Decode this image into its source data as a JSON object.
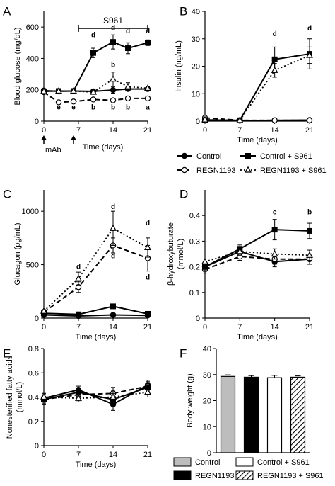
{
  "chart_data": [
    {
      "panel": "A",
      "type": "line",
      "ylabel": "Blood glucose (mg/dL)",
      "xlabel": "Time (days)",
      "ylim": [
        0,
        700
      ],
      "yticks": [
        0,
        200,
        400,
        600
      ],
      "xlim": [
        0,
        21
      ],
      "xticks": [
        0,
        7,
        14,
        21
      ],
      "bracket": {
        "label": "S961",
        "from": 7,
        "to": 21
      },
      "arrows": [
        {
          "x": 0,
          "label": "mAb"
        },
        {
          "x": 6,
          "label": ""
        }
      ],
      "series": [
        {
          "name": "Control",
          "x": [
            0,
            3,
            6,
            10,
            14,
            17,
            21
          ],
          "y": [
            195,
            190,
            192,
            190,
            198,
            205,
            205
          ],
          "err": [
            8,
            6,
            6,
            8,
            20,
            12,
            6
          ],
          "style": "control"
        },
        {
          "name": "REGN1193",
          "x": [
            0,
            3,
            6,
            10,
            14,
            17,
            21
          ],
          "y": [
            185,
            120,
            125,
            138,
            133,
            145,
            145
          ],
          "err": [
            8,
            8,
            8,
            8,
            8,
            10,
            8
          ],
          "style": "regn"
        },
        {
          "name": "Control + S961",
          "x": [
            0,
            3,
            6,
            10,
            14,
            17,
            21
          ],
          "y": [
            190,
            192,
            192,
            435,
            505,
            465,
            500
          ],
          "err": [
            8,
            8,
            8,
            30,
            45,
            35,
            18
          ],
          "style": "control_s961"
        },
        {
          "name": "REGN1193 + S961",
          "x": [
            0,
            3,
            6,
            10,
            14,
            17,
            21
          ],
          "y": [
            190,
            192,
            192,
            185,
            268,
            220,
            210
          ],
          "err": [
            8,
            8,
            8,
            10,
            45,
            25,
            10
          ],
          "style": "regn_s961"
        }
      ],
      "annotations": [
        {
          "x": 10,
          "y": 535,
          "text": "d"
        },
        {
          "x": 14,
          "y": 580,
          "text": "d"
        },
        {
          "x": 17,
          "y": 560,
          "text": "d"
        },
        {
          "x": 21,
          "y": 560,
          "text": "d"
        },
        {
          "x": 14,
          "y": 345,
          "text": "b"
        },
        {
          "x": 3,
          "y": 75,
          "text": "e"
        },
        {
          "x": 6,
          "y": 75,
          "text": "e"
        },
        {
          "x": 10,
          "y": 75,
          "text": "b"
        },
        {
          "x": 14,
          "y": 75,
          "text": "b"
        },
        {
          "x": 17,
          "y": 75,
          "text": "b"
        },
        {
          "x": 21,
          "y": 75,
          "text": "a"
        }
      ]
    },
    {
      "panel": "B",
      "type": "line",
      "ylabel": "Insulin (ng/mL)",
      "xlabel": "Time (days)",
      "ylim": [
        0,
        40
      ],
      "yticks": [
        0,
        10,
        20,
        30,
        40
      ],
      "xlim": [
        0,
        21
      ],
      "xticks": [
        0,
        7,
        14,
        21
      ],
      "series": [
        {
          "name": "Control",
          "x": [
            0,
            7,
            14,
            21
          ],
          "y": [
            0.5,
            0.2,
            0.3,
            0.4
          ],
          "err": [
            0.3,
            0.2,
            0.2,
            0.2
          ],
          "style": "control"
        },
        {
          "name": "REGN1193",
          "x": [
            0,
            7,
            14,
            21
          ],
          "y": [
            1.2,
            0.3,
            0.3,
            0.3
          ],
          "err": [
            0.4,
            0.2,
            0.2,
            0.2
          ],
          "style": "regn"
        },
        {
          "name": "Control + S961",
          "x": [
            0,
            7,
            14,
            21
          ],
          "y": [
            0.4,
            0.3,
            22.5,
            24.5
          ],
          "err": [
            0.2,
            0.2,
            4.5,
            5.5
          ],
          "style": "control_s961"
        },
        {
          "name": "REGN1193 + S961",
          "x": [
            0,
            7,
            14,
            21
          ],
          "y": [
            0.5,
            0.3,
            18.5,
            24.0
          ],
          "err": [
            0.2,
            0.2,
            2.5,
            3.0
          ],
          "style": "regn_s961"
        }
      ],
      "annotations": [
        {
          "x": 14,
          "y": 31,
          "text": "d"
        },
        {
          "x": 21,
          "y": 33,
          "text": "d"
        }
      ]
    },
    {
      "panel": "C",
      "type": "line",
      "ylabel": "Glucagon (pg/mL)",
      "xlabel": "Time (days)",
      "ylim": [
        0,
        1200
      ],
      "yticks": [
        0,
        500,
        1000
      ],
      "xlim": [
        0,
        21
      ],
      "xticks": [
        0,
        7,
        14,
        21
      ],
      "series": [
        {
          "name": "Control",
          "x": [
            0,
            7,
            14,
            21
          ],
          "y": [
            30,
            20,
            30,
            25
          ],
          "err": [
            8,
            8,
            8,
            8
          ],
          "style": "control"
        },
        {
          "name": "REGN1193",
          "x": [
            0,
            7,
            14,
            21
          ],
          "y": [
            55,
            290,
            680,
            560
          ],
          "err": [
            15,
            50,
            70,
            120
          ],
          "style": "regn"
        },
        {
          "name": "Control + S961",
          "x": [
            0,
            7,
            14,
            21
          ],
          "y": [
            45,
            35,
            110,
            40
          ],
          "err": [
            10,
            8,
            15,
            10
          ],
          "style": "control_s961"
        },
        {
          "name": "REGN1193 + S961",
          "x": [
            0,
            7,
            14,
            21
          ],
          "y": [
            65,
            370,
            840,
            660
          ],
          "err": [
            15,
            60,
            160,
            90
          ],
          "style": "regn_s961"
        }
      ],
      "annotations": [
        {
          "x": 7,
          "y": 460,
          "text": "d"
        },
        {
          "x": 14,
          "y": 1020,
          "text": "d"
        },
        {
          "x": 14,
          "y": 560,
          "text": "d"
        },
        {
          "x": 21,
          "y": 870,
          "text": "d"
        },
        {
          "x": 21,
          "y": 360,
          "text": "d"
        }
      ]
    },
    {
      "panel": "D",
      "type": "line",
      "ylabel": "β-hydroxybuturate (mmol/L)",
      "xlabel": "Time (days)",
      "ylim": [
        0,
        0.5
      ],
      "yticks": [
        0,
        0.1,
        0.2,
        0.3,
        0.4
      ],
      "xlim": [
        0,
        21
      ],
      "xticks": [
        0,
        7,
        14,
        21
      ],
      "series": [
        {
          "name": "Control",
          "x": [
            0,
            7,
            14,
            21
          ],
          "y": [
            0.2,
            0.26,
            0.22,
            0.23
          ],
          "err": [
            0.015,
            0.015,
            0.02,
            0.02
          ],
          "style": "control"
        },
        {
          "name": "REGN1193",
          "x": [
            0,
            7,
            14,
            21
          ],
          "y": [
            0.19,
            0.24,
            0.23,
            0.23
          ],
          "err": [
            0.015,
            0.015,
            0.02,
            0.02
          ],
          "style": "regn"
        },
        {
          "name": "Control + S961",
          "x": [
            0,
            7,
            14,
            21
          ],
          "y": [
            0.2,
            0.27,
            0.345,
            0.34
          ],
          "err": [
            0.015,
            0.015,
            0.04,
            0.03
          ],
          "style": "control_s961"
        },
        {
          "name": "REGN1193 + S961",
          "x": [
            0,
            7,
            14,
            21
          ],
          "y": [
            0.22,
            0.26,
            0.25,
            0.245
          ],
          "err": [
            0.03,
            0.015,
            0.02,
            0.02
          ],
          "style": "regn_s961"
        }
      ],
      "annotations": [
        {
          "x": 14,
          "y": 0.405,
          "text": "c"
        },
        {
          "x": 21,
          "y": 0.405,
          "text": "b"
        }
      ]
    },
    {
      "panel": "E",
      "type": "line",
      "ylabel": "Nonesterified fatty acids (mmol/L)",
      "xlabel": "Time (days)",
      "ylim": [
        0,
        0.8
      ],
      "yticks": [
        0,
        0.2,
        0.4,
        0.6,
        0.8
      ],
      "xlim": [
        0,
        21
      ],
      "xticks": [
        0,
        7,
        14,
        21
      ],
      "series": [
        {
          "name": "Control",
          "x": [
            0,
            7,
            14,
            21
          ],
          "y": [
            0.39,
            0.46,
            0.34,
            0.5
          ],
          "err": [
            0.04,
            0.03,
            0.05,
            0.04
          ],
          "style": "control"
        },
        {
          "name": "REGN1193",
          "x": [
            0,
            7,
            14,
            21
          ],
          "y": [
            0.38,
            0.42,
            0.43,
            0.49
          ],
          "err": [
            0.04,
            0.03,
            0.05,
            0.04
          ],
          "style": "regn"
        },
        {
          "name": "Control + S961",
          "x": [
            0,
            7,
            14,
            21
          ],
          "y": [
            0.38,
            0.44,
            0.38,
            0.48
          ],
          "err": [
            0.04,
            0.03,
            0.05,
            0.04
          ],
          "style": "control_s961"
        },
        {
          "name": "REGN1193 + S961",
          "x": [
            0,
            7,
            14,
            21
          ],
          "y": [
            0.4,
            0.39,
            0.4,
            0.44
          ],
          "err": [
            0.04,
            0.03,
            0.05,
            0.04
          ],
          "style": "regn_s961"
        }
      ]
    },
    {
      "panel": "F",
      "type": "bar",
      "ylabel": "Body weight (g)",
      "ylim": [
        0,
        40
      ],
      "yticks": [
        0,
        10,
        20,
        30,
        40
      ],
      "categories": [
        "Control",
        "REGN1193",
        "Control + S961",
        "REGN1193 + S961"
      ],
      "values": [
        29.3,
        29.0,
        28.8,
        29.0
      ],
      "err": [
        0.6,
        0.6,
        0.9,
        0.5
      ],
      "fills": [
        "#bdbdbd",
        "#000000",
        "#ffffff",
        "hatch"
      ]
    }
  ],
  "legend_top": [
    {
      "label": "Control",
      "style": "control"
    },
    {
      "label": "Control + S961",
      "style": "control_s961"
    },
    {
      "label": "REGN1193",
      "style": "regn"
    },
    {
      "label": "REGN1193 + S961",
      "style": "regn_s961"
    }
  ],
  "legend_bottom": [
    {
      "label": "Control",
      "fill": "#bdbdbd"
    },
    {
      "label": "Control + S961",
      "fill": "#ffffff"
    },
    {
      "label": "REGN1193",
      "fill": "#000000"
    },
    {
      "label": "REGN1193 + S961",
      "fill": "hatch"
    }
  ]
}
